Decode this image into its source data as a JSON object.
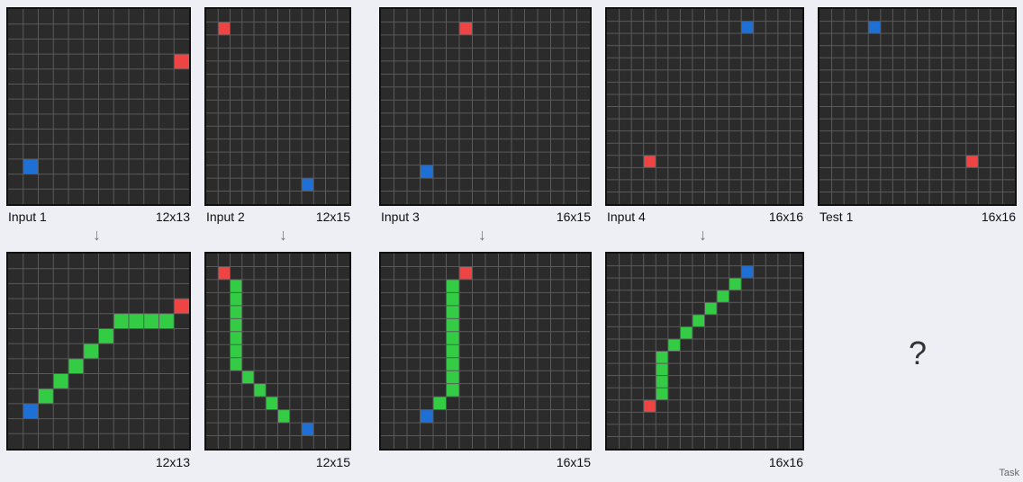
{
  "colors": {
    "background": "#2b2b2b",
    "gridline": "#5a5a5a",
    "red": "#ee4444",
    "blue": "#1e6fd6",
    "green": "#33cc44"
  },
  "task_label": "Task",
  "unknown_output": "?",
  "pairs": [
    {
      "input_label": "Input 1",
      "input_size": "12x13",
      "output_size": "12x13",
      "input": {
        "cols": 12,
        "rows": 13,
        "red": [
          [
            11,
            3
          ]
        ],
        "blue": [
          [
            1,
            10
          ]
        ],
        "green": []
      },
      "output": {
        "cols": 12,
        "rows": 13,
        "red": [
          [
            11,
            3
          ]
        ],
        "blue": [
          [
            1,
            10
          ]
        ],
        "green": [
          [
            7,
            4
          ],
          [
            8,
            4
          ],
          [
            9,
            4
          ],
          [
            10,
            4
          ],
          [
            6,
            5
          ],
          [
            5,
            6
          ],
          [
            4,
            7
          ],
          [
            3,
            8
          ],
          [
            2,
            9
          ]
        ]
      }
    },
    {
      "input_label": "Input 2",
      "input_size": "12x15",
      "output_size": "12x15",
      "input": {
        "cols": 12,
        "rows": 15,
        "red": [
          [
            1,
            1
          ]
        ],
        "blue": [
          [
            8,
            13
          ]
        ],
        "green": []
      },
      "output": {
        "cols": 12,
        "rows": 15,
        "red": [
          [
            1,
            1
          ]
        ],
        "blue": [
          [
            8,
            13
          ]
        ],
        "green": [
          [
            2,
            2
          ],
          [
            2,
            3
          ],
          [
            2,
            4
          ],
          [
            2,
            5
          ],
          [
            2,
            6
          ],
          [
            2,
            7
          ],
          [
            2,
            8
          ],
          [
            3,
            9
          ],
          [
            4,
            10
          ],
          [
            5,
            11
          ],
          [
            6,
            12
          ]
        ]
      }
    },
    {
      "input_label": "Input 3",
      "input_size": "16x15",
      "output_size": "16x15",
      "input": {
        "cols": 16,
        "rows": 15,
        "red": [
          [
            6,
            1
          ]
        ],
        "blue": [
          [
            3,
            12
          ]
        ],
        "green": []
      },
      "output": {
        "cols": 16,
        "rows": 15,
        "red": [
          [
            6,
            1
          ]
        ],
        "blue": [
          [
            3,
            12
          ]
        ],
        "green": [
          [
            5,
            2
          ],
          [
            5,
            3
          ],
          [
            5,
            4
          ],
          [
            5,
            5
          ],
          [
            5,
            6
          ],
          [
            5,
            7
          ],
          [
            5,
            8
          ],
          [
            5,
            9
          ],
          [
            5,
            10
          ],
          [
            4,
            11
          ]
        ]
      }
    },
    {
      "input_label": "Input 4",
      "input_size": "16x16",
      "output_size": "16x16",
      "input": {
        "cols": 16,
        "rows": 16,
        "red": [
          [
            3,
            12
          ]
        ],
        "blue": [
          [
            11,
            1
          ]
        ],
        "green": []
      },
      "output": {
        "cols": 16,
        "rows": 16,
        "red": [
          [
            3,
            12
          ]
        ],
        "blue": [
          [
            11,
            1
          ]
        ],
        "green": [
          [
            10,
            2
          ],
          [
            9,
            3
          ],
          [
            8,
            4
          ],
          [
            7,
            5
          ],
          [
            6,
            6
          ],
          [
            5,
            7
          ],
          [
            4,
            8
          ],
          [
            4,
            9
          ],
          [
            4,
            10
          ],
          [
            4,
            11
          ]
        ]
      }
    }
  ],
  "test": {
    "input_label": "Test 1",
    "input_size": "16x16",
    "input": {
      "cols": 16,
      "rows": 16,
      "red": [
        [
          12,
          12
        ]
      ],
      "blue": [
        [
          4,
          1
        ]
      ],
      "green": []
    }
  }
}
